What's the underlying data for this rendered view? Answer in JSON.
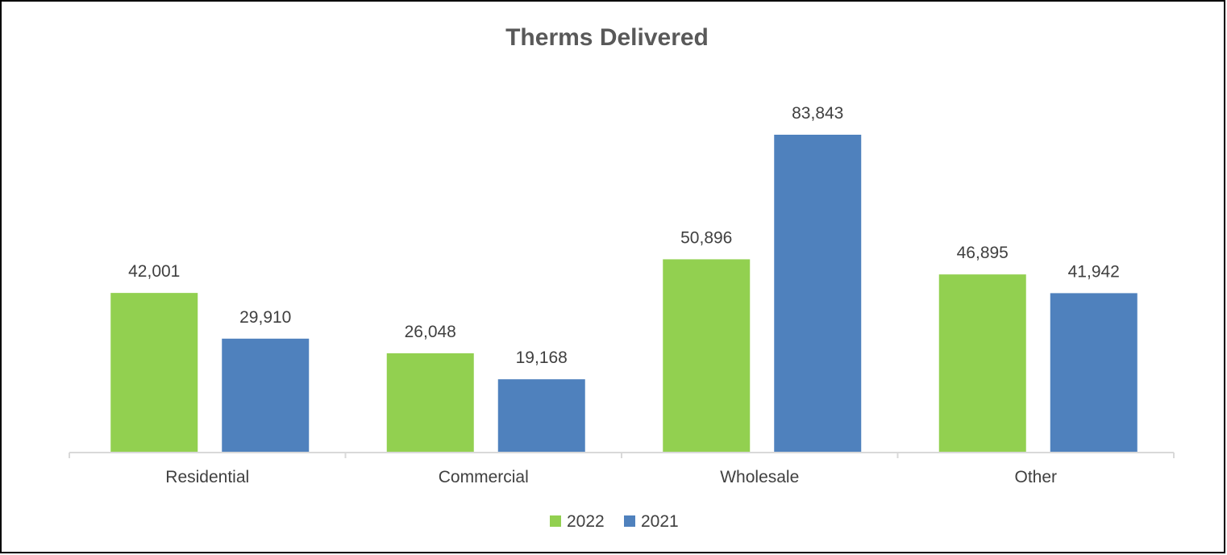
{
  "chart_data": {
    "type": "bar",
    "title": "Therms Delivered",
    "xlabel": "",
    "ylabel": "",
    "categories": [
      "Residential",
      "Commercial",
      "Wholesale",
      "Other"
    ],
    "series": [
      {
        "name": "2022",
        "color": "#92D050",
        "values": [
          42001,
          26048,
          50896,
          46895
        ],
        "labels": [
          "42,001",
          "26,048",
          "50,896",
          "46,895"
        ]
      },
      {
        "name": "2021",
        "color": "#4F81BD",
        "values": [
          29910,
          19168,
          83843,
          41942
        ],
        "labels": [
          "29,910",
          "19,168",
          "83,843",
          "41,942"
        ]
      }
    ],
    "ylim": [
      0,
      90000
    ],
    "grid": false,
    "legend": "bottom"
  }
}
